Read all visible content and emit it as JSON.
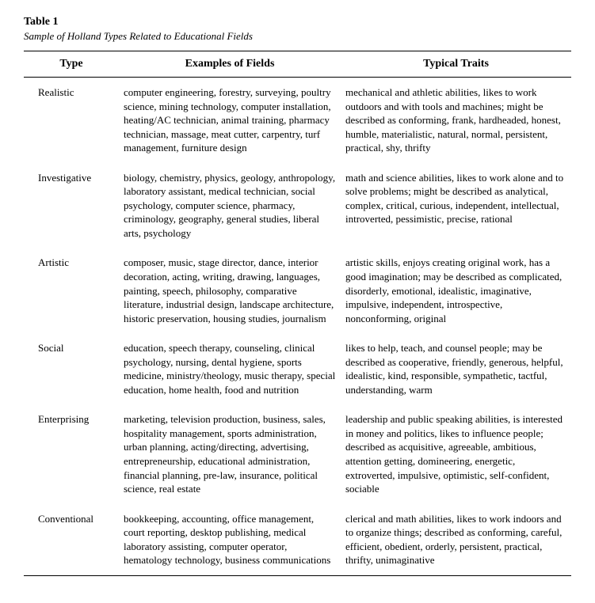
{
  "table_label": "Table 1",
  "caption": "Sample of Holland Types Related to Educational Fields",
  "headers": {
    "type": "Type",
    "fields": "Examples of Fields",
    "traits": "Typical Traits"
  },
  "rows": [
    {
      "type": "Realistic",
      "fields": "computer engineering, forestry, surveying, poultry science, mining technology, computer installation, heating/AC technician, animal training, pharmacy technician, massage, meat cutter, carpentry, turf management, furniture design",
      "traits": "mechanical and athletic abilities, likes to work outdoors and with tools and machines; might be described as conforming, frank, hardheaded, honest, humble, materialistic, natural, normal, persistent, practical, shy, thrifty"
    },
    {
      "type": "Investigative",
      "fields": "biology, chemistry, physics, geology, anthropology, laboratory assistant, medical technician, social psychology, computer science, pharmacy, criminology, geography, general studies, liberal arts, psychology",
      "traits": "math and science abilities, likes to work alone and to solve problems; might be described as analytical, complex, critical, curious, independent, intellectual, introverted, pessimistic, precise, rational"
    },
    {
      "type": "Artistic",
      "fields": "composer, music, stage director, dance, interior decoration, acting, writing, drawing, languages, painting, speech, philosophy, comparative literature, industrial design, landscape architecture, historic preservation, housing studies, journalism",
      "traits": "artistic skills, enjoys creating original work, has a good imagination; may be described as complicated, disorderly, emotional, idealistic, imaginative, impulsive, independent, introspective, nonconforming, original"
    },
    {
      "type": "Social",
      "fields": "education, speech therapy, counseling, clinical psychology, nursing, dental hygiene, sports medicine, ministry/theology, music therapy, special education, home health, food and nutrition",
      "traits": "likes to help, teach, and counsel people; may be described as cooperative, friendly, generous, helpful, idealistic, kind, responsible, sympathetic, tactful, understanding, warm"
    },
    {
      "type": "Enterprising",
      "fields": "marketing, television production, business, sales, hospitality management, sports administration, urban planning, acting/directing, advertising, entrepreneurship, educational administration, financial planning, pre-law, insurance, political science, real estate",
      "traits": "leadership and public speaking abilities, is interested in money and politics, likes to influence people; described as acquisitive, agreeable, ambitious, attention getting, domineering, energetic, extroverted, impulsive, optimistic, self-confident, sociable"
    },
    {
      "type": "Conventional",
      "fields": "bookkeeping, accounting, office management, court reporting, desktop publishing, medical laboratory assisting, computer operator, hematology technology, business communications",
      "traits": "clerical and math abilities, likes to work indoors and to organize things; described as conforming, careful, efficient, obedient, orderly, persistent, practical, thrifty, unimaginative"
    }
  ]
}
